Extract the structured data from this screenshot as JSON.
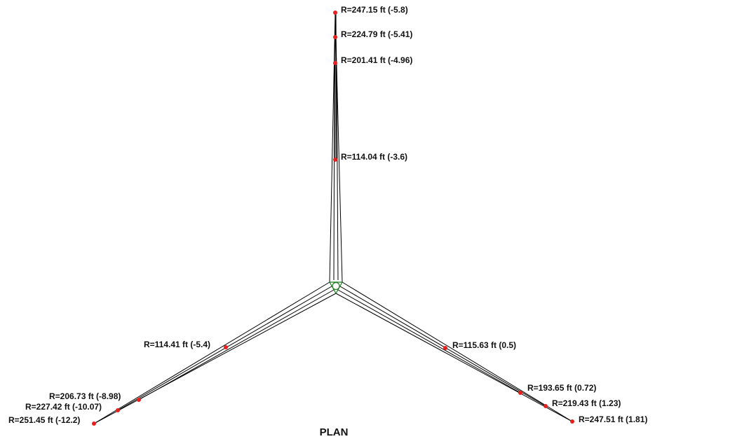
{
  "title": "PLAN",
  "colors": {
    "line": "#000000",
    "point": "#e8201c",
    "center_triangle": "#1e7d1e",
    "background": "#ffffff"
  },
  "legs": [
    {
      "name": "north",
      "points": [
        {
          "label": "R=114.04 ft (-3.6)"
        },
        {
          "label": "R=201.41 ft (-4.96)"
        },
        {
          "label": "R=224.79 ft (-5.41)"
        },
        {
          "label": "R=247.15 ft (-5.8)"
        }
      ]
    },
    {
      "name": "southwest",
      "points": [
        {
          "label": "R=114.41 ft (-5.4)"
        },
        {
          "label": "R=206.73 ft (-8.98)"
        },
        {
          "label": "R=227.42 ft (-10.07)"
        },
        {
          "label": "R=251.45 ft (-12.2)"
        }
      ]
    },
    {
      "name": "southeast",
      "points": [
        {
          "label": "R=115.63 ft (0.5)"
        },
        {
          "label": "R=193.65 ft (0.72)"
        },
        {
          "label": "R=219.43 ft (1.23)"
        },
        {
          "label": "R=247.51 ft (1.81)"
        }
      ]
    }
  ]
}
